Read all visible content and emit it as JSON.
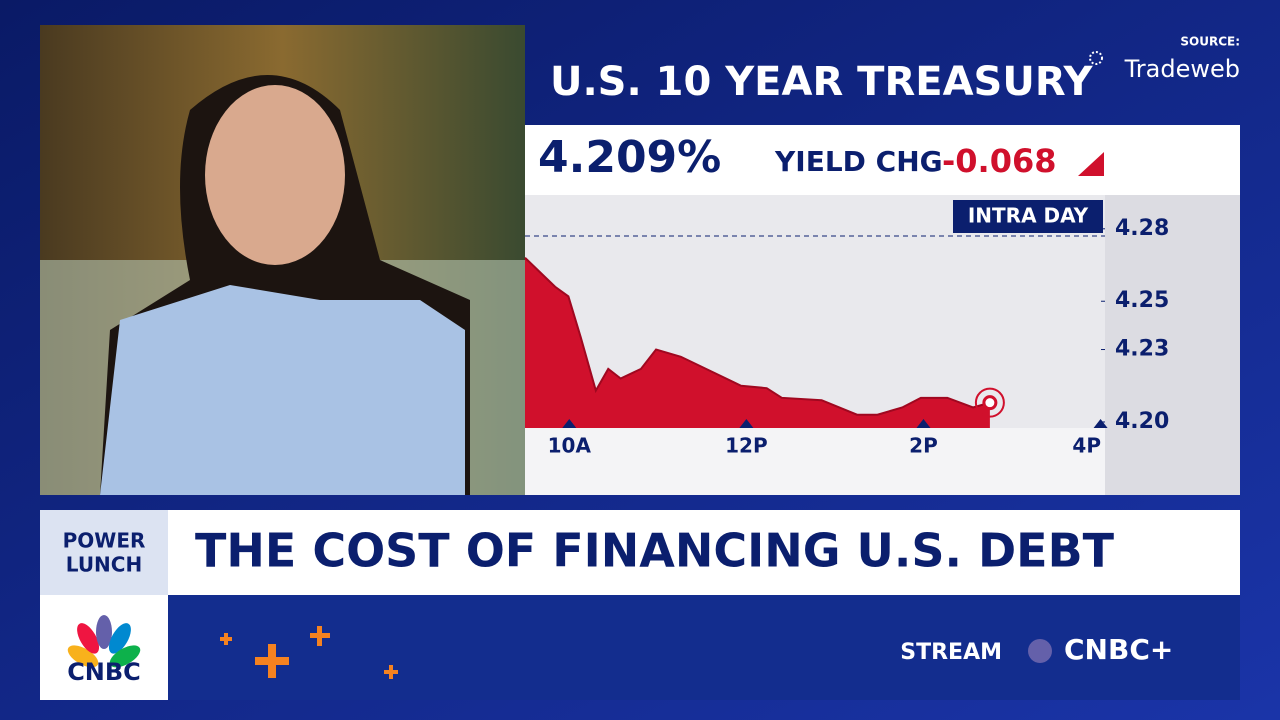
{
  "header": {
    "title": "U.S. 10 YEAR TREASURY",
    "source_label": "SOURCE:",
    "source": "Tradeweb"
  },
  "quote": {
    "value": "4.209%",
    "change_label": "YIELD CHG",
    "change": "-0.068"
  },
  "chart": {
    "type": "area",
    "label": "INTRA DAY",
    "color": "#d0102c",
    "x": [
      9.5,
      9.67,
      9.84,
      9.99,
      10.13,
      10.3,
      10.44,
      10.58,
      10.81,
      10.98,
      11.26,
      11.6,
      11.94,
      12.23,
      12.4,
      12.85,
      13.25,
      13.48,
      13.76,
      13.97,
      14.27,
      14.56,
      14.75
    ],
    "values": [
      4.268,
      4.262,
      4.256,
      4.252,
      4.235,
      4.213,
      4.222,
      4.218,
      4.222,
      4.23,
      4.227,
      4.221,
      4.215,
      4.214,
      4.21,
      4.209,
      4.203,
      4.203,
      4.206,
      4.21,
      4.21,
      4.206,
      4.208
    ],
    "reference": 4.277,
    "xlim": [
      9.5,
      16.05
    ],
    "xticks": [
      {
        "value": 10,
        "label": "10A"
      },
      {
        "value": 12,
        "label": "12P"
      },
      {
        "value": 14,
        "label": "2P"
      },
      {
        "value": 16,
        "label": "4P"
      }
    ],
    "ylim": [
      4.1975,
      4.294
    ],
    "yticks": [
      4.28,
      4.25,
      4.23,
      {
        "value": 4.2,
        "label": "4.20"
      }
    ]
  },
  "banner": {
    "show": [
      "POWER",
      "LUNCH"
    ],
    "headline": "THE COST OF FINANCING U.S. DEBT"
  },
  "footer": {
    "network": "CNBC",
    "stream": "STREAM",
    "brand": "CNBC+"
  }
}
